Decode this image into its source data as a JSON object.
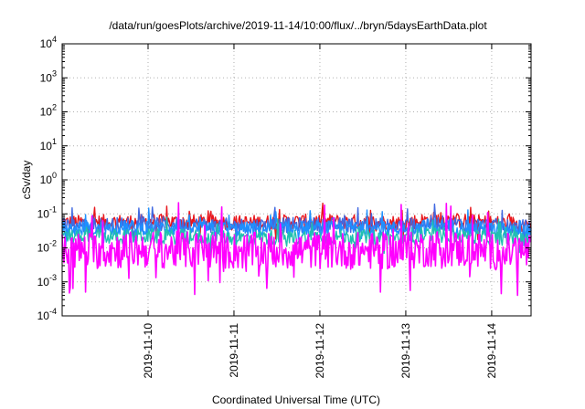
{
  "chart_data": {
    "type": "line",
    "title": "/data/run/goesPlots/archive/2019-11-14/10:00/flux/../bryn/5daysEarthData.plot",
    "xlabel": "Coordinated Universal Time (UTC)",
    "ylabel": "cSv/day",
    "yscale": "log",
    "ylim": [
      0.0001,
      10000
    ],
    "y_ticks": [
      {
        "base": "10",
        "exp": "-4"
      },
      {
        "base": "10",
        "exp": "-3"
      },
      {
        "base": "10",
        "exp": "-2"
      },
      {
        "base": "10",
        "exp": "-1"
      },
      {
        "base": "10",
        "exp": "0"
      },
      {
        "base": "10",
        "exp": "1"
      },
      {
        "base": "10",
        "exp": "2"
      },
      {
        "base": "10",
        "exp": "3"
      },
      {
        "base": "10",
        "exp": "4"
      }
    ],
    "xlim": [
      "2019-11-09 00:00",
      "2019-11-14 11:00"
    ],
    "x_ticks": [
      "2019-11-10",
      "2019-11-11",
      "2019-11-12",
      "2019-11-13",
      "2019-11-14"
    ],
    "grid": true,
    "legend": "none",
    "data_gap": [
      "2019-11-13 08:00",
      "2019-11-13 07:00"
    ],
    "series": [
      {
        "color": "#e8161c",
        "x": [
          "2019-11-09 00:00",
          "2019-11-10 00:00",
          "2019-11-11 00:00",
          "2019-11-12 00:00",
          "2019-11-13 00:00",
          "2019-11-13 08:00",
          "2019-11-14 00:00",
          "2019-11-14 11:00"
        ],
        "values": [
          0.055,
          0.06,
          0.055,
          0.06,
          0.055,
          0.07,
          0.055,
          0.05
        ]
      },
      {
        "color": "#4169e1",
        "x": [
          "2019-11-09 00:00",
          "2019-11-10 00:00",
          "2019-11-11 00:00",
          "2019-11-12 00:00",
          "2019-11-13 00:00",
          "2019-11-13 08:00",
          "2019-11-14 00:00",
          "2019-11-14 11:00"
        ],
        "values": [
          0.045,
          0.05,
          0.045,
          0.048,
          0.045,
          0.055,
          0.045,
          0.04
        ]
      },
      {
        "color": "#1e90ff",
        "x": [
          "2019-11-09 00:00",
          "2019-11-10 00:00",
          "2019-11-11 00:00",
          "2019-11-12 00:00",
          "2019-11-13 00:00",
          "2019-11-13 08:00",
          "2019-11-14 00:00",
          "2019-11-14 11:00"
        ],
        "values": [
          0.035,
          0.04,
          0.035,
          0.038,
          0.035,
          0.045,
          0.035,
          0.03
        ]
      },
      {
        "color": "#20c0b0",
        "x": [
          "2019-11-09 00:00",
          "2019-11-10 00:00",
          "2019-11-11 00:00",
          "2019-11-12 00:00",
          "2019-11-13 00:00",
          "2019-11-13 08:00",
          "2019-11-14 00:00",
          "2019-11-14 11:00"
        ],
        "values": [
          0.02,
          0.022,
          0.02,
          0.021,
          0.02,
          0.025,
          0.02,
          0.018
        ]
      },
      {
        "color": "#ff00ff",
        "x": [
          "2019-11-09 00:00",
          "2019-11-10 00:00",
          "2019-11-11 00:00",
          "2019-11-12 00:00",
          "2019-11-13 00:00",
          "2019-11-13 08:00",
          "2019-11-14 00:00",
          "2019-11-14 11:00"
        ],
        "values": [
          0.008,
          0.009,
          0.008,
          0.0085,
          0.008,
          0.01,
          0.008,
          0.0075
        ]
      }
    ]
  }
}
